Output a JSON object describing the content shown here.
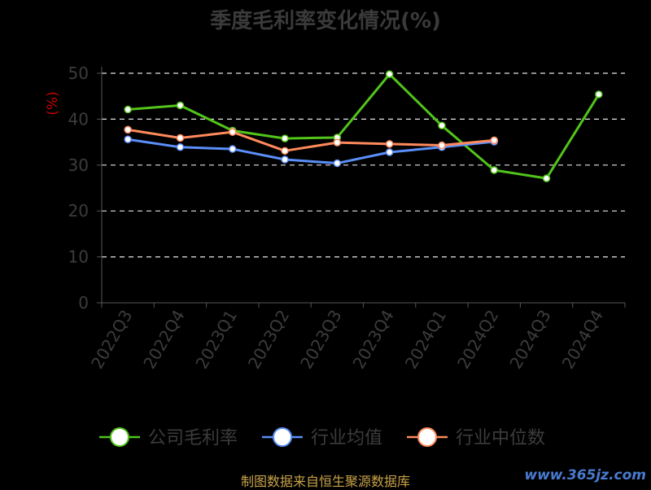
{
  "chart_data": {
    "type": "line",
    "title": "季度毛利率变化情况(%)",
    "ylabel": "(%)",
    "ylim": [
      0,
      50
    ],
    "yticks": [
      0,
      10,
      20,
      30,
      40,
      50
    ],
    "grid": true,
    "legend_position": "bottom",
    "categories": [
      "2022Q3",
      "2022Q4",
      "2023Q1",
      "2023Q2",
      "2023Q3",
      "2023Q4",
      "2024Q1",
      "2024Q2",
      "2024Q3",
      "2024Q4"
    ],
    "series": [
      {
        "name": "公司毛利率",
        "color": "#52c41a",
        "values": [
          42.1,
          43.0,
          37.5,
          35.8,
          36.0,
          49.8,
          38.6,
          28.9,
          27.1,
          45.4
        ]
      },
      {
        "name": "行业均值",
        "color": "#5b8ff9",
        "values": [
          35.6,
          33.9,
          33.5,
          31.2,
          30.4,
          32.8,
          33.9,
          35.1,
          null,
          null
        ]
      },
      {
        "name": "行业中位数",
        "color": "#ff8a5c",
        "values": [
          37.7,
          35.9,
          37.2,
          33.1,
          34.9,
          34.6,
          34.3,
          35.4,
          null,
          null
        ]
      }
    ]
  },
  "footer": {
    "source": "制图数据来自恒生聚源数据库",
    "watermark": "www.365jz.com"
  }
}
